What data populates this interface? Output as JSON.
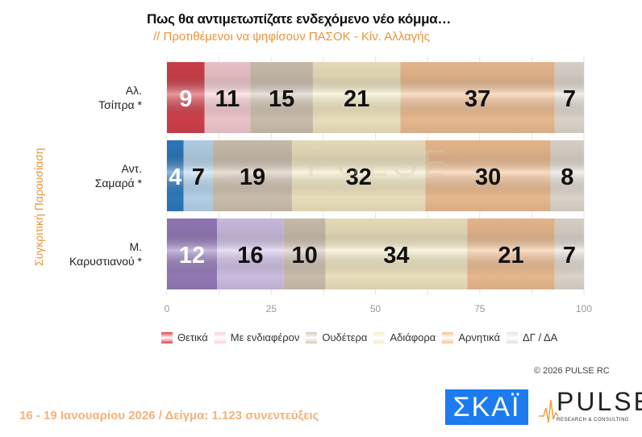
{
  "chart_data": {
    "type": "bar",
    "orientation": "horizontal-stacked-100",
    "title": "Πως θα αντιμετωπίζατε ενδεχόμενο νέο κόμμα…",
    "subtitle": "// Προτιθέμενοι να ψηφίσουν ΠΑΣΟΚ - Κίν. Αλλαγής",
    "ylabel": "Συγκριτική  Παρουσίαση",
    "categories": [
      [
        "Αλ.",
        "Τσίπρα *"
      ],
      [
        "Αντ.",
        "Σαμαρά *"
      ],
      [
        "Μ.",
        "Καρυστιανού *"
      ]
    ],
    "series": [
      {
        "name": "Θετικά",
        "values": [
          9,
          4,
          12
        ],
        "colors": [
          "#d9434e",
          "#2f7fc4",
          "#9b7fc0"
        ],
        "label_color": "#ffffff"
      },
      {
        "name": "Με ενδιαφέρον",
        "values": [
          11,
          7,
          16
        ],
        "colors": [
          "#fbd0d6",
          "#bcdcf6",
          "#d6c6ec"
        ],
        "label_color": "#111111"
      },
      {
        "name": "Ουδέτερα",
        "values": [
          15,
          19,
          10
        ],
        "colors": [
          "#d6c8b6",
          "#d6c8b6",
          "#d6c8b6"
        ],
        "label_color": "#111111"
      },
      {
        "name": "Αδιάφορα",
        "values": [
          21,
          32,
          34
        ],
        "colors": [
          "#f8ecc6",
          "#f8ecc6",
          "#f8ecc6"
        ],
        "label_color": "#111111"
      },
      {
        "name": "Αρνητικά",
        "values": [
          37,
          30,
          21
        ],
        "colors": [
          "#f5c396",
          "#f5c396",
          "#f5c396"
        ],
        "label_color": "#111111"
      },
      {
        "name": "ΔΓ / ΔΑ",
        "values": [
          7,
          8,
          7
        ],
        "colors": [
          "#e8e0d6",
          "#e8e0d6",
          "#e8e0d6"
        ],
        "label_color": "#111111"
      }
    ],
    "legend_colors": [
      "#d9434e",
      "#fbd0d6",
      "#d6c8b6",
      "#f8ecc6",
      "#f5c396",
      "#e8e0d6"
    ],
    "xlim": [
      0,
      100
    ],
    "xticks": [
      "0",
      "25",
      "50",
      "75",
      "100"
    ],
    "grid": true,
    "legend_position": "bottom"
  },
  "watermark": "PULSE",
  "copyright": "©  2026  PULSE RC",
  "footer": "16 - 19 Ιανουαρίου 2026  /  Δείγμα:  1.123 συνεντεύξεις",
  "logos": {
    "skai": "ΣΚΑΪ",
    "pulse": "PULSE",
    "pulse_sub": "RESEARCH & CONSULTING"
  }
}
